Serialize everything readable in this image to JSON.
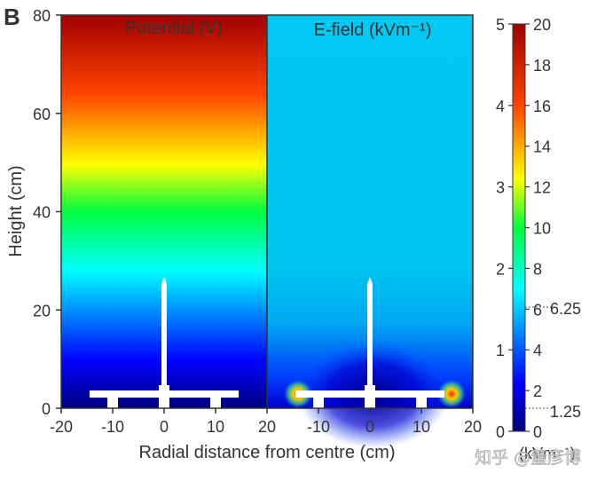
{
  "chart_data": {
    "type": "heatmap",
    "panel_label": "B",
    "xlabel": "Radial distance from centre (cm)",
    "ylabel": "Height (cm)",
    "panels": [
      {
        "title": "Potential (V)",
        "xlim": [
          -20,
          20
        ],
        "ylim": [
          0,
          80
        ],
        "xticks": [
          -20,
          -10,
          0,
          10,
          20
        ],
        "yticks": [
          0,
          20,
          40,
          60,
          80
        ],
        "colorbar": "right-inner",
        "clim": [
          0,
          20
        ]
      },
      {
        "title": "E-field (kVm⁻¹)",
        "xlim": [
          -20,
          20
        ],
        "ylim": [
          0,
          80
        ],
        "xticks": [
          -10,
          0,
          10,
          20
        ],
        "colorbar": "left-outer",
        "clim": [
          0,
          5
        ]
      }
    ],
    "colorbar_left_ticks": [
      0,
      1,
      2,
      3,
      4,
      5
    ],
    "colorbar_right_ticks": [
      0,
      2,
      4,
      6,
      8,
      10,
      12,
      14,
      16,
      18,
      20
    ],
    "colorbar_annotations": [
      "6.25",
      "1.25"
    ],
    "colorbar_left_label": "(kVm⁻¹)",
    "watermark": "知乎 @董彦博"
  }
}
